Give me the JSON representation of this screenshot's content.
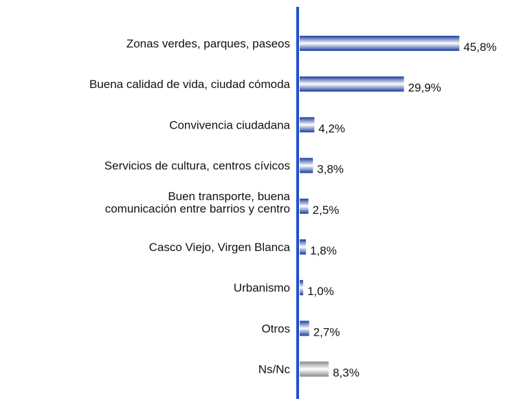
{
  "chart_data": {
    "type": "bar",
    "orientation": "horizontal",
    "categories": [
      "Zonas verdes, parques, paseos",
      "Buena calidad de vida, ciudad cómoda",
      "Convivencia ciudadana",
      "Servicios de cultura, centros cívicos",
      "Buen transporte, buena\ncomunicación entre barrios y centro",
      "Casco Viejo, Virgen Blanca",
      "Urbanismo",
      "Otros",
      "Ns/Nc"
    ],
    "values": [
      45.8,
      29.9,
      4.2,
      3.8,
      2.5,
      1.8,
      1.0,
      2.7,
      8.3
    ],
    "value_labels": [
      "45,8%",
      "29,9%",
      "4,2%",
      "3,8%",
      "2,5%",
      "1,8%",
      "1,0%",
      "2,7%",
      "8,3%"
    ],
    "colors": [
      "#1c3c9c",
      "#1c3c9c",
      "#1c3c9c",
      "#1c3c9c",
      "#1c3c9c",
      "#1c3c9c",
      "#1c3c9c",
      "#1c3c9c",
      "#8a8a8a"
    ]
  }
}
